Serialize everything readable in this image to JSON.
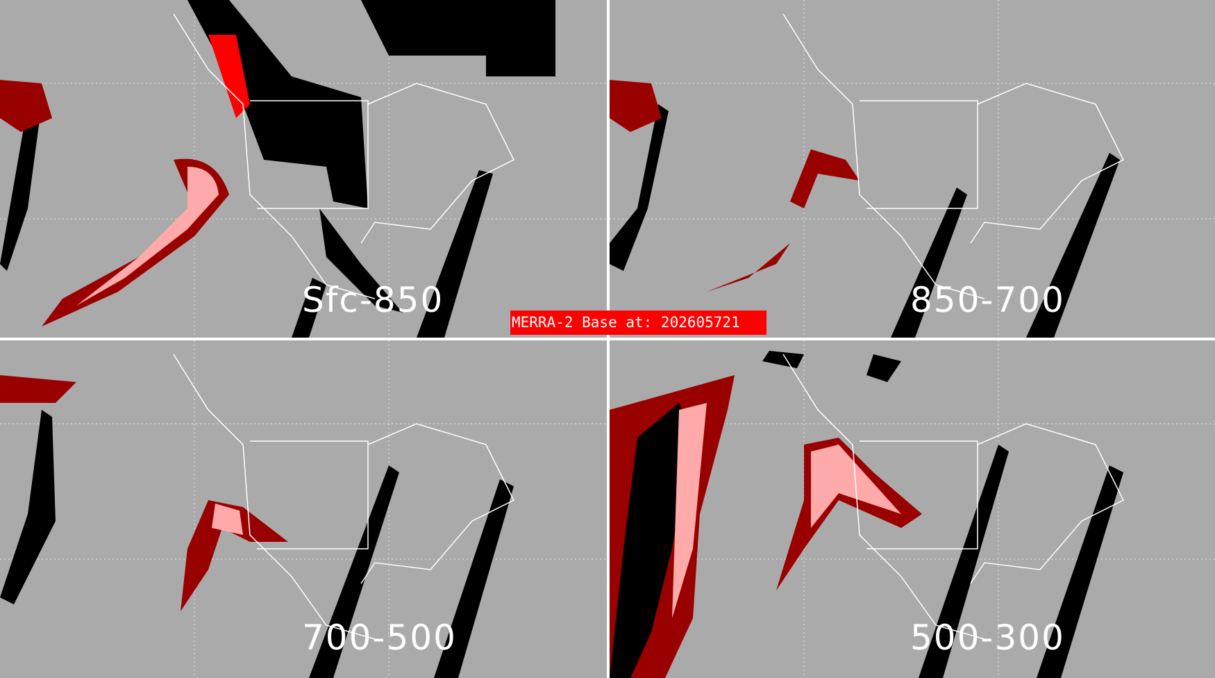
{
  "panels": [
    {
      "label": "Sfc-850"
    },
    {
      "label": "850-700"
    },
    {
      "label": "700-500"
    },
    {
      "label": "500-300"
    }
  ],
  "base_label": "MERRA-2 Base at: 202605721",
  "colors": {
    "background": "#aaaaaa",
    "coastline": "#ffffff",
    "band": "#000000",
    "dark_red": "#990000",
    "red": "#ff0000",
    "pink": "#ffaaaa",
    "label_bg": "#ff0000"
  }
}
